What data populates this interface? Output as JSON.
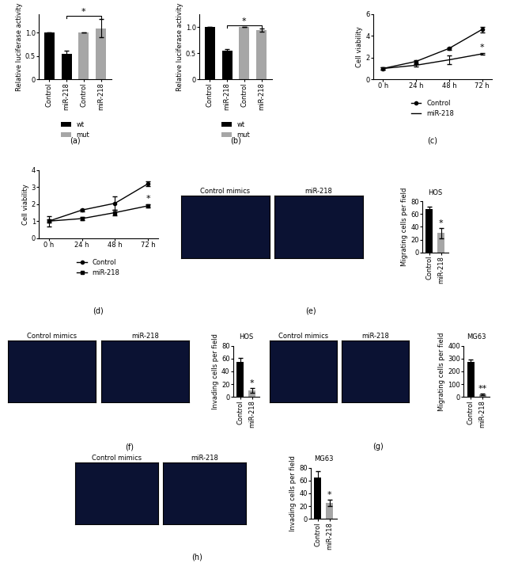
{
  "chart_data": [
    {
      "type": "bar",
      "caption": "(a)",
      "ylabel": "Relative luciferase activity",
      "categories": [
        "Control",
        "miR-218",
        "Control",
        "miR-218"
      ],
      "series": [
        {
          "name": "wt",
          "color": "#000000",
          "values": [
            1.0,
            0.55,
            null,
            null
          ],
          "errors": [
            0,
            0.06,
            null,
            null
          ]
        },
        {
          "name": "mut",
          "color": "#a6a6a6",
          "values": [
            null,
            null,
            1.0,
            1.1
          ],
          "errors": [
            null,
            null,
            0,
            0.2
          ]
        }
      ],
      "ylim": [
        0,
        1.4
      ],
      "yticks": [
        0,
        0.5,
        {
          "value": 1,
          "label": "1.0"
        }
      ],
      "legend": "below",
      "significance": {
        "text": "*",
        "between": [
          1,
          3
        ]
      }
    },
    {
      "type": "bar",
      "caption": "(b)",
      "ylabel": "Relative luciferase activity",
      "categories": [
        "Control",
        "miR-218",
        "Control",
        "miR-218"
      ],
      "series": [
        {
          "name": "wt",
          "color": "#000000",
          "values": [
            1.0,
            0.55,
            null,
            null
          ],
          "errors": [
            0,
            0.03,
            null,
            null
          ]
        },
        {
          "name": "mut",
          "color": "#a6a6a6",
          "values": [
            null,
            null,
            1.0,
            0.95
          ],
          "errors": [
            null,
            null,
            0,
            0.03
          ]
        }
      ],
      "ylim": [
        0,
        1.25
      ],
      "yticks": [
        0,
        0.5,
        {
          "value": 1,
          "label": "1.0"
        }
      ],
      "legend": "below",
      "significance": {
        "text": "*",
        "between": [
          1,
          3
        ]
      }
    },
    {
      "type": "line",
      "caption": "(c)",
      "ylabel": "Cell viability",
      "categories": [
        "0 h",
        "24 h",
        "48 h",
        "72 h"
      ],
      "series": [
        {
          "name": "Control",
          "color": "#000000",
          "marker": "circle",
          "values": [
            1.0,
            1.65,
            2.85,
            4.6
          ],
          "errors": [
            0.1,
            0.15,
            0.1,
            0.25
          ]
        },
        {
          "name": "miR-218",
          "color": "#000000",
          "marker": "none",
          "values": [
            1.0,
            1.3,
            1.8,
            2.35
          ],
          "errors": [
            0.1,
            0.1,
            0.4,
            0.1
          ]
        }
      ],
      "ylim": [
        0,
        6
      ],
      "yticks": [
        0,
        2,
        4,
        6
      ],
      "legend": "below",
      "significance": {
        "text": "*"
      }
    },
    {
      "type": "line",
      "caption": "(d)",
      "ylabel": "Cell viability",
      "categories": [
        "0 h",
        "24 h",
        "48 h",
        "72 h"
      ],
      "series": [
        {
          "name": "Control",
          "color": "#000000",
          "marker": "circle",
          "values": [
            1.0,
            1.65,
            2.05,
            3.2
          ],
          "errors": [
            0.3,
            0.08,
            0.4,
            0.12
          ]
        },
        {
          "name": "miR-218",
          "color": "#000000",
          "marker": "square",
          "values": [
            1.0,
            1.15,
            1.5,
            1.9
          ],
          "errors": [
            0.1,
            0.08,
            0.15,
            0.08
          ]
        }
      ],
      "ylim": [
        0,
        4
      ],
      "yticks": [
        0,
        1,
        2,
        3,
        4
      ],
      "legend": "below",
      "significance": {
        "text": "*"
      }
    },
    {
      "type": "bar",
      "caption": "(e)",
      "title": "HOS",
      "images": [
        "Control mimics",
        "miR-218"
      ],
      "ylabel": "Migrating cells per field",
      "categories": [
        "Control",
        "miR-218"
      ],
      "values": [
        68,
        30
      ],
      "errors": [
        4,
        8
      ],
      "colors": [
        "#000000",
        "#a6a6a6"
      ],
      "ylim": [
        0,
        80
      ],
      "yticks": [
        0,
        20,
        40,
        60,
        80
      ],
      "significance": {
        "text": "*"
      }
    },
    {
      "type": "bar",
      "caption": "(f)",
      "title": "HOS",
      "images": [
        "Control mimics",
        "miR-218"
      ],
      "ylabel": "Invading cells per field",
      "categories": [
        "Control",
        "miR-218"
      ],
      "values": [
        55,
        10
      ],
      "errors": [
        6,
        4
      ],
      "colors": [
        "#000000",
        "#a6a6a6"
      ],
      "ylim": [
        0,
        80
      ],
      "yticks": [
        0,
        20,
        40,
        60,
        80
      ],
      "significance": {
        "text": "*"
      }
    },
    {
      "type": "bar",
      "caption": "(g)",
      "title": "MG63",
      "images": [
        "Control mimics",
        "miR-218"
      ],
      "ylabel": "Migrating cells per field",
      "categories": [
        "Control",
        "miR-218"
      ],
      "values": [
        275,
        20
      ],
      "errors": [
        20,
        5
      ],
      "colors": [
        "#000000",
        "#a6a6a6"
      ],
      "ylim": [
        0,
        400
      ],
      "yticks": [
        0,
        100,
        200,
        300,
        400
      ],
      "significance": {
        "text": "**"
      }
    },
    {
      "type": "bar",
      "caption": "(h)",
      "title": "MG63",
      "images": [
        "Control mimics",
        "miR-218"
      ],
      "ylabel": "Invading cells per field",
      "categories": [
        "Control",
        "miR-218"
      ],
      "values": [
        65,
        25
      ],
      "errors": [
        10,
        5
      ],
      "colors": [
        "#000000",
        "#a6a6a6"
      ],
      "ylim": [
        0,
        80
      ],
      "yticks": [
        0,
        20,
        40,
        60,
        80
      ],
      "significance": {
        "text": "*"
      }
    }
  ]
}
